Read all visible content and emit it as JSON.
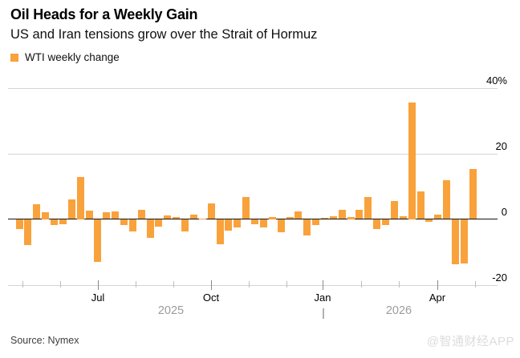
{
  "header": {
    "title": "Oil Heads for a Weekly Gain",
    "subtitle": "US and Iran tensions grow over the Strait of Hormuz"
  },
  "legend": {
    "label": "WTI weekly change",
    "swatch_color": "#F9A23C"
  },
  "footer": {
    "source": "Source: Nymex",
    "watermark": "@智通财经APP"
  },
  "colors": {
    "bar": "#F9A23C",
    "grid": "#D4D4D4",
    "zero_line": "#141414",
    "year_text": "#9B9B9B",
    "tick_minor": "#BDBDBD",
    "tick_major": "#8A8A8A"
  },
  "chart_data": {
    "type": "bar",
    "title": "Oil Heads for a Weekly Gain",
    "series_name": "WTI weekly change",
    "unit": "% weekly change",
    "ylim": [
      -20,
      40
    ],
    "grid": true,
    "legend_position": "top-left",
    "yticks": [
      {
        "value": 40,
        "label": "40%"
      },
      {
        "value": 20,
        "label": "20"
      },
      {
        "value": 0,
        "label": "0"
      },
      {
        "value": -20,
        "label": "-20"
      }
    ],
    "x_axis": {
      "major_ticks": [
        {
          "label": "Jul",
          "x": 122
        },
        {
          "label": "Oct",
          "x": 263
        },
        {
          "label": "Jan",
          "x": 402
        },
        {
          "label": "Apr",
          "x": 545
        }
      ],
      "minor_tick_x": [
        28,
        75,
        169,
        216,
        310,
        357,
        450,
        497,
        592
      ],
      "year_labels": [
        {
          "label": "2025",
          "x": 213
        },
        {
          "label": "2026",
          "x": 497
        }
      ],
      "year_divider_x": 402
    },
    "x_description": "weekly bars, May 2025 through mid-May 2026",
    "values": [
      -2.9,
      -7.8,
      4.6,
      2.2,
      -1.7,
      -1.4,
      6.0,
      12.8,
      2.6,
      -12.9,
      2.0,
      2.3,
      -1.7,
      -3.6,
      2.9,
      -5.6,
      -2.2,
      1.2,
      0.5,
      -3.7,
      1.3,
      0.2,
      4.7,
      -7.6,
      -3.4,
      -2.3,
      6.8,
      -1.5,
      -2.3,
      0.6,
      -3.9,
      0.7,
      2.4,
      -4.7,
      -1.7,
      0.3,
      0.9,
      2.9,
      0.6,
      2.7,
      6.8,
      -2.9,
      -1.6,
      5.4,
      0.8,
      35.6,
      8.4,
      -0.7,
      1.3,
      11.8,
      -13.7,
      -13.3,
      15.3
    ]
  }
}
